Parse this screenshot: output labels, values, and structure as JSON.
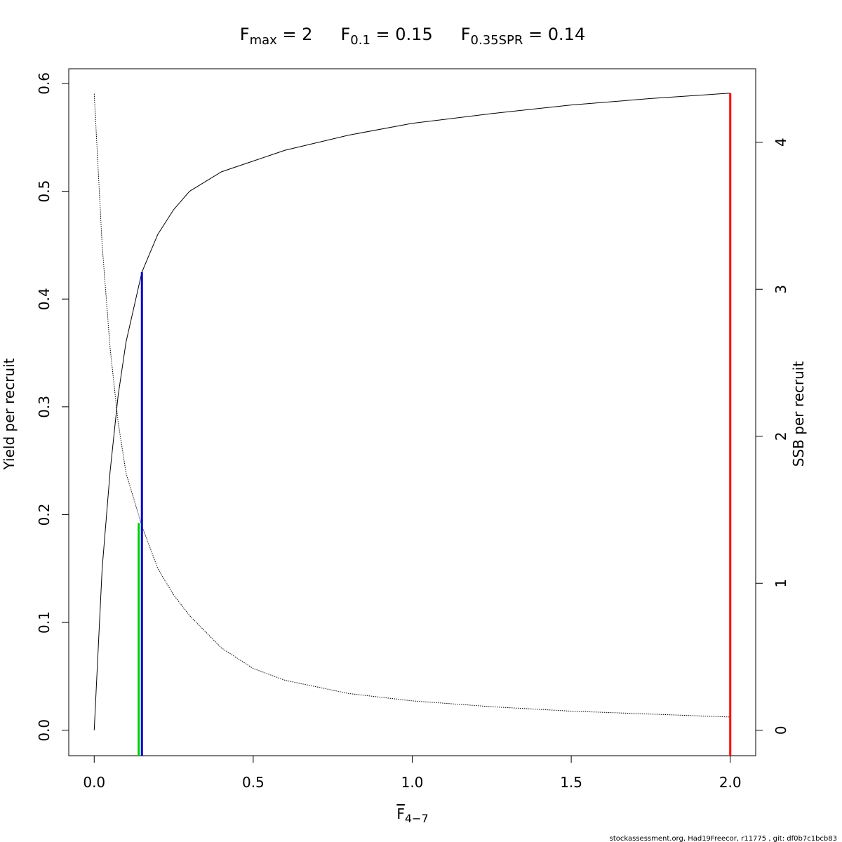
{
  "chart_data": {
    "type": "line",
    "title_parts": [
      {
        "base": "F",
        "sub": "max",
        "text": " = 2"
      },
      {
        "base": "F",
        "sub": "0.1",
        "text": " = 0.15"
      },
      {
        "base": "F",
        "sub": "0.35SPR",
        "text": " = 0.14"
      }
    ],
    "x_label": {
      "base": "F",
      "sub": "4−7"
    },
    "y_label": "Yield per recruit",
    "y2_label": "SSB per recruit",
    "footer": "stockassessment.org, Had19Freecor, r11775 , git: df0b7c1bcb83",
    "x": [
      0,
      0.025,
      0.05,
      0.075,
      0.1,
      0.15,
      0.2,
      0.25,
      0.3,
      0.4,
      0.5,
      0.6,
      0.8,
      1.0,
      1.25,
      1.5,
      1.75,
      2.0
    ],
    "series": [
      {
        "name": "Yield per recruit",
        "color": "#000000",
        "style": "solid",
        "values": [
          0,
          0.15,
          0.24,
          0.31,
          0.36,
          0.425,
          0.46,
          0.483,
          0.5,
          0.518,
          0.528,
          0.538,
          0.552,
          0.563,
          0.572,
          0.58,
          0.586,
          0.591
        ]
      },
      {
        "name": "SSB per recruit",
        "color": "#000000",
        "style": "dotted",
        "axis": "y2",
        "values": [
          4.33,
          3.3,
          2.6,
          2.1,
          1.75,
          1.39,
          1.1,
          0.92,
          0.78,
          0.56,
          0.42,
          0.34,
          0.25,
          0.2,
          0.16,
          0.13,
          0.11,
          0.09
        ]
      }
    ],
    "ref_lines": [
      {
        "x": 2,
        "top": 0.591,
        "color": "#ff0000"
      },
      {
        "x": 0.15,
        "top": 0.425,
        "color": "#0000cc"
      },
      {
        "x": 0.14,
        "top": 1.41,
        "color": "#00cc00",
        "axis": "y2"
      }
    ],
    "xlim": [
      -0.08,
      2.08
    ],
    "xticks": [
      {
        "value": 0,
        "label": "0.0"
      },
      0.5,
      {
        "value": 1,
        "label": "1.0"
      },
      1.5,
      {
        "value": 2,
        "label": "2.0"
      }
    ],
    "ylim": [
      -0.0236,
      0.6136
    ],
    "yticks": [
      {
        "value": 0,
        "label": "0.0"
      },
      0.1,
      0.2,
      0.3,
      0.4,
      0.5,
      0.6
    ],
    "y2lim": [
      -0.173,
      4.5
    ],
    "y2ticks": [
      0,
      1,
      2,
      3,
      4
    ]
  }
}
